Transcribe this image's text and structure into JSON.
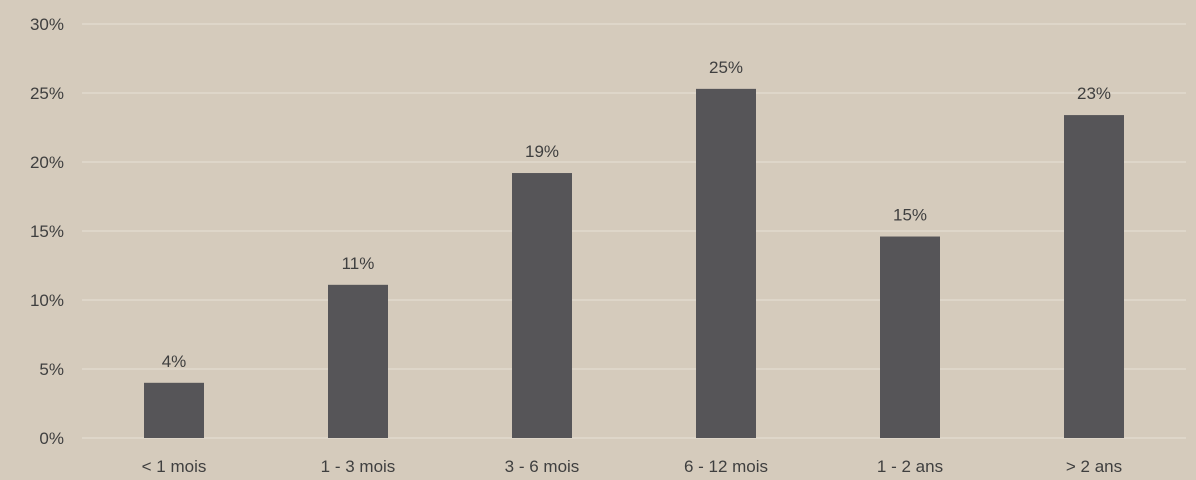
{
  "chart_data": {
    "type": "bar",
    "title": "",
    "xlabel": "",
    "ylabel": "",
    "categories": [
      "< 1 mois",
      "1 - 3 mois",
      "3 - 6 mois",
      "6 - 12 mois",
      "1 - 2 ans",
      "> 2 ans"
    ],
    "values": [
      4,
      11.1,
      19.2,
      25.3,
      14.6,
      23.4
    ],
    "data_labels": [
      "4%",
      "11%",
      "19%",
      "25%",
      "15%",
      "23%"
    ],
    "ylim": [
      0,
      30
    ],
    "y_ticks": [
      0,
      5,
      10,
      15,
      20,
      25,
      30
    ],
    "y_tick_labels": [
      "0%",
      "5%",
      "10%",
      "15%",
      "20%",
      "25%",
      "30%"
    ],
    "grid": true,
    "legend": "none",
    "colors": {
      "background": "#d5cbbc",
      "bar": "#565558",
      "grid": "#e8e1d6",
      "text": "#3f3f3f"
    }
  }
}
